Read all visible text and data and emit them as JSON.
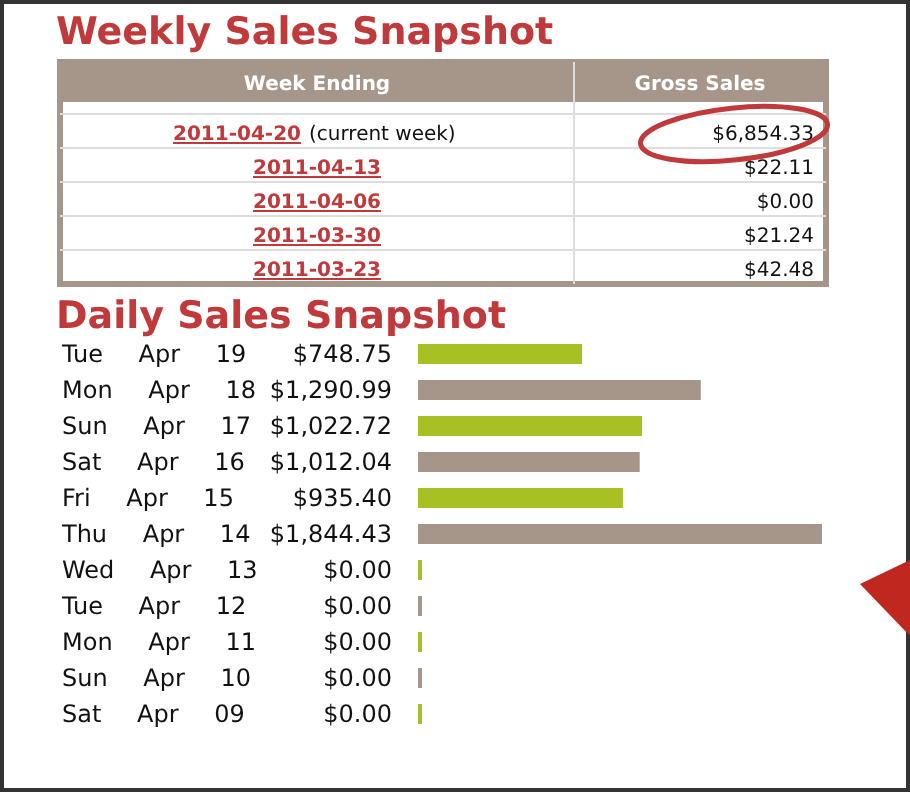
{
  "chart_data": [
    {
      "type": "other",
      "title": "Weekly Sales Snapshot",
      "xlabel": "Week Ending",
      "ylabel": "Gross Sales",
      "categories": [
        "2011-04-20",
        "2011-04-13",
        "2011-04-06",
        "2011-03-30",
        "2011-03-23"
      ],
      "annotations": [
        "(current week)",
        "$6,854.33",
        "$22.11",
        "$0.00",
        "$21.24",
        "$42.48"
      ]
    },
    {
      "type": "bar",
      "orientation": "horizontal",
      "title": "Daily Sales Snapshot",
      "categories": [
        "Tue Apr 19",
        "Mon Apr 18",
        "Sun Apr 17",
        "Sat Apr 16",
        "Fri Apr 15",
        "Thu Apr 14",
        "Wed Apr 13",
        "Tue Apr 12",
        "Mon Apr 11",
        "Sun Apr 10",
        "Sat Apr 09"
      ],
      "values": [
        748.75,
        1290.99,
        1022.72,
        1012.04,
        935.4,
        1844.43,
        0,
        0,
        0,
        0,
        0
      ],
      "value_labels": [
        "$748.75",
        "$1,290.99",
        "$1,022.72",
        "$1,012.04",
        "$935.40",
        "$1,844.43",
        "$0.00",
        "$0.00",
        "$0.00",
        "$0.00",
        "$0.00"
      ],
      "colors": [
        "#a8c023",
        "#a6968a",
        "#a8c023",
        "#a6968a",
        "#a8c023",
        "#a6968a",
        "#a8c023",
        "#a6968a",
        "#a8c023",
        "#a6968a",
        "#a8c023"
      ]
    }
  ]
}
